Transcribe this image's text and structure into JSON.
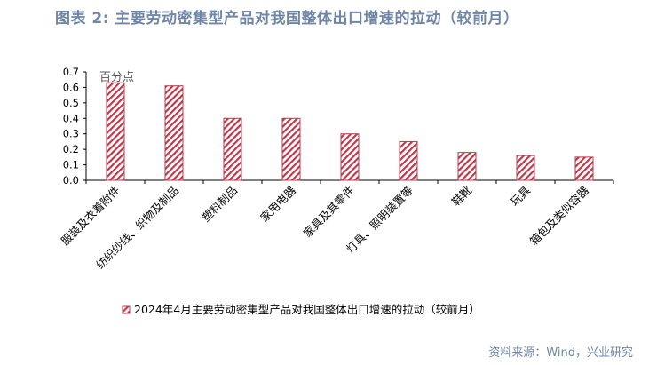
{
  "figure_title": "图表 2:  主要劳动密集型产品对我国整体出口增速的拉动（较前月）",
  "source_note": "资料来源：Wind，兴业研究",
  "colors": {
    "title": "#6f86a6",
    "bar": "#c0394b",
    "axis": "#000000"
  },
  "chart_data": {
    "type": "bar",
    "unit_label": "百分点",
    "categories": [
      "服装及衣着附件",
      "纺织纱线、织物及制品",
      "塑料制品",
      "家用电器",
      "家具及其零件",
      "灯具、照明装置等",
      "鞋靴",
      "玩具",
      "箱包及类似容器"
    ],
    "series": [
      {
        "name": "2024年4月主要劳动密集型产品对我国整体出口增速的拉动（较前月）",
        "values": [
          0.63,
          0.61,
          0.4,
          0.4,
          0.3,
          0.25,
          0.18,
          0.16,
          0.15
        ]
      }
    ],
    "ylim": [
      0,
      0.7
    ],
    "yticks": [
      "0.0",
      "0.1",
      "0.2",
      "0.3",
      "0.4",
      "0.5",
      "0.6",
      "0.7"
    ],
    "grid": false,
    "legend_position": "bottom"
  }
}
